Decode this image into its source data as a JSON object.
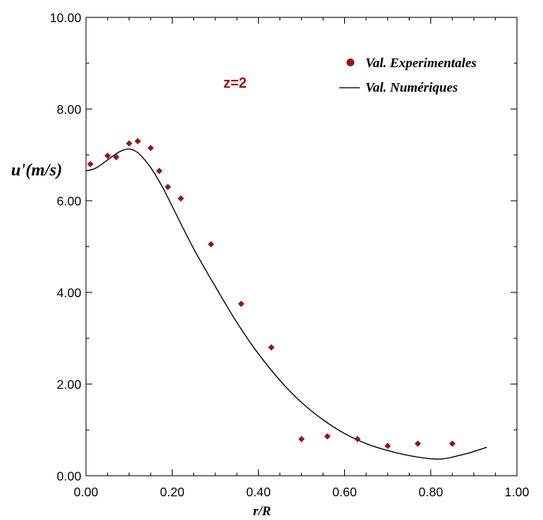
{
  "chart_data": {
    "type": "scatter",
    "annotation": "z=2",
    "xlabel": "r/R",
    "ylabel": "u'(m/s)",
    "xlim": [
      0.0,
      1.0
    ],
    "ylim": [
      0.0,
      10.0
    ],
    "x_ticks": [
      "0.00",
      "0.20",
      "0.40",
      "0.60",
      "0.80",
      "1.00"
    ],
    "y_ticks": [
      "0.00",
      "2.00",
      "4.00",
      "6.00",
      "8.00",
      "10.00"
    ],
    "grid": false,
    "legend_position": "top-right",
    "colors": {
      "experimental": "#9b1010",
      "numerical": "#000000",
      "annotation": "#9b1010"
    },
    "series": [
      {
        "name": "Val. Experimentales",
        "kind": "markers",
        "x": [
          0.01,
          0.05,
          0.07,
          0.1,
          0.12,
          0.15,
          0.17,
          0.19,
          0.22,
          0.29,
          0.36,
          0.43,
          0.5,
          0.56,
          0.63,
          0.7,
          0.77,
          0.85
        ],
        "y": [
          6.8,
          6.98,
          6.95,
          7.25,
          7.3,
          7.15,
          6.65,
          6.3,
          6.05,
          5.05,
          3.75,
          2.8,
          0.8,
          0.86,
          0.8,
          0.65,
          0.7,
          0.7
        ]
      },
      {
        "name": "Val. Numériques",
        "kind": "line",
        "x": [
          0.0,
          0.02,
          0.04,
          0.06,
          0.08,
          0.1,
          0.12,
          0.14,
          0.16,
          0.18,
          0.2,
          0.22,
          0.25,
          0.28,
          0.3,
          0.33,
          0.36,
          0.4,
          0.45,
          0.5,
          0.55,
          0.6,
          0.65,
          0.7,
          0.75,
          0.8,
          0.83,
          0.86,
          0.89,
          0.93
        ],
        "y": [
          6.65,
          6.7,
          6.82,
          6.96,
          7.08,
          7.13,
          7.05,
          6.85,
          6.58,
          6.25,
          5.88,
          5.5,
          4.95,
          4.45,
          4.13,
          3.65,
          3.2,
          2.66,
          2.08,
          1.6,
          1.22,
          0.92,
          0.7,
          0.55,
          0.44,
          0.37,
          0.37,
          0.43,
          0.5,
          0.62
        ]
      }
    ]
  }
}
